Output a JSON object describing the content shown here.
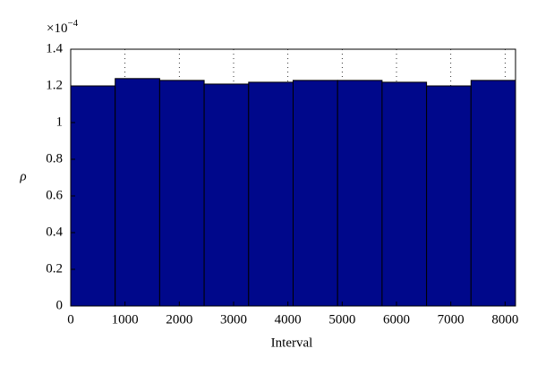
{
  "chart_data": {
    "type": "histogram",
    "bins": [
      0,
      819.2,
      1638.4,
      2457.6,
      3276.8,
      4096,
      4915.2,
      5734.4,
      6553.6,
      7372.8,
      8192
    ],
    "values": [
      1.2,
      1.24,
      1.23,
      1.21,
      1.22,
      1.23,
      1.23,
      1.22,
      1.2,
      1.23
    ],
    "color": "#00088b",
    "xlabel": "Interval",
    "ylabel": "ρ",
    "y_multiplier": {
      "base": "×10",
      "exponent": "−4"
    },
    "xlim": [
      0,
      8192
    ],
    "xticks": [
      0,
      1000,
      2000,
      3000,
      4000,
      5000,
      6000,
      7000,
      8000
    ],
    "ylim": [
      0,
      1.4
    ],
    "yticks": [
      0,
      0.2,
      0.4,
      0.6,
      0.8,
      1,
      1.2,
      1.4
    ],
    "xgrid": true
  }
}
